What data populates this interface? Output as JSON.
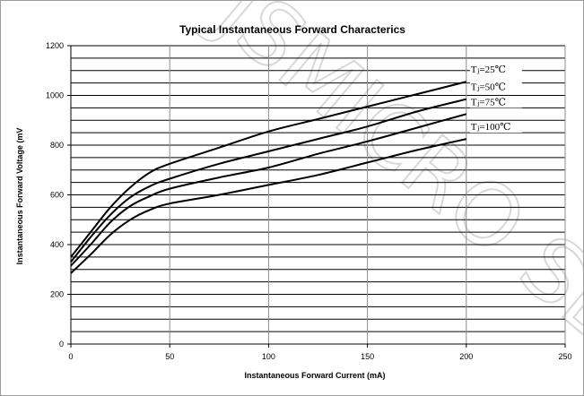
{
  "chart_data": {
    "type": "line",
    "title": "Typical Instantaneous Forward Characterics",
    "xlabel": "Instantaneous  Forward  Current  (mA)",
    "ylabel": "Instantaneous  Forward  Voltage  (mV",
    "xlim": [
      0,
      250
    ],
    "ylim": [
      0,
      1200
    ],
    "xticks": [
      0,
      50,
      100,
      150,
      200,
      250
    ],
    "yticks": [
      0,
      200,
      400,
      600,
      800,
      1000,
      1200
    ],
    "grid": true,
    "legend": "inline-right",
    "series": [
      {
        "name": "Tⱼ=25℃",
        "x": [
          0,
          10,
          20,
          30,
          40,
          50,
          75,
          100,
          125,
          150,
          175,
          200
        ],
        "values": [
          350,
          450,
          550,
          630,
          690,
          725,
          790,
          855,
          905,
          955,
          1005,
          1055
        ]
      },
      {
        "name": "Tⱼ=50℃",
        "x": [
          0,
          10,
          20,
          30,
          40,
          50,
          75,
          100,
          125,
          150,
          175,
          200
        ],
        "values": [
          330,
          430,
          520,
          590,
          635,
          665,
          725,
          775,
          825,
          875,
          935,
          985
        ]
      },
      {
        "name": "Tⱼ=75℃",
        "x": [
          0,
          10,
          20,
          30,
          40,
          50,
          75,
          100,
          125,
          150,
          175,
          200
        ],
        "values": [
          315,
          400,
          490,
          555,
          595,
          625,
          670,
          710,
          765,
          815,
          870,
          925
        ]
      },
      {
        "name": "Tⱼ=100℃",
        "x": [
          0,
          10,
          20,
          30,
          40,
          50,
          75,
          100,
          125,
          150,
          175,
          200
        ],
        "values": [
          285,
          360,
          440,
          500,
          540,
          565,
          600,
          640,
          680,
          730,
          780,
          825
        ]
      }
    ]
  },
  "watermark_text": "JSMICRO SE",
  "colors": {
    "line": "#000000",
    "grid": "#000000",
    "vgrid": "#8c8c8c",
    "watermark": "#d8d8d8"
  }
}
